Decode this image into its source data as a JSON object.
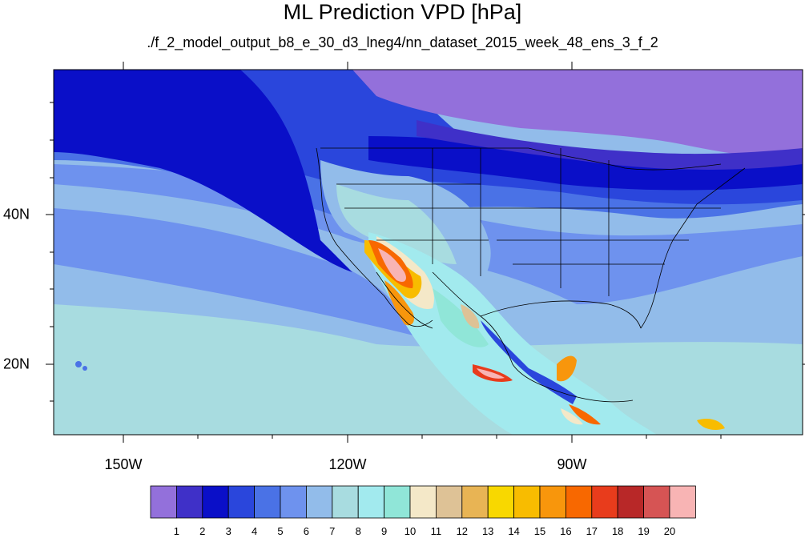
{
  "title": "ML Prediction VPD [hPa]",
  "subtitle": "./f_2_model_output_b8_e_30_d3_lneg4/nn_dataset_2015_week_48_ens_3_f_2",
  "lon_labels": [
    "150W",
    "120W",
    "90W"
  ],
  "lat_labels": [
    "40N",
    "20N"
  ],
  "colorbar": {
    "labels": [
      "1",
      "2",
      "3",
      "4",
      "5",
      "6",
      "7",
      "8",
      "9",
      "10",
      "11",
      "12",
      "13",
      "14",
      "15",
      "16",
      "17",
      "18",
      "19",
      "20"
    ],
    "colors": [
      "#9370db",
      "#3f30c8",
      "#0a0fc8",
      "#2a46dc",
      "#4a72e6",
      "#6e92ee",
      "#92bcea",
      "#a8dce0",
      "#a2eaee",
      "#90e6d8",
      "#f4e8c8",
      "#dec296",
      "#e8b454",
      "#f8d800",
      "#f8bc00",
      "#f8960c",
      "#f86800",
      "#e83c1c",
      "#b82828",
      "#d65454",
      "#f8b4b4"
    ]
  }
}
